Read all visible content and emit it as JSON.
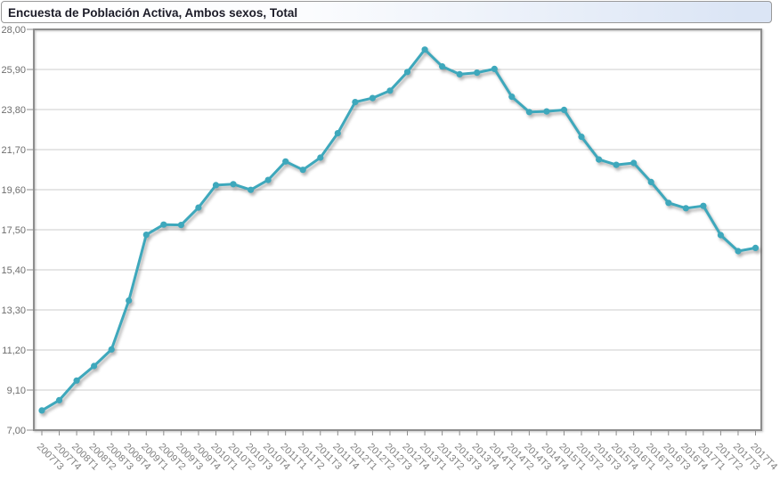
{
  "header": {
    "title": "Encuesta de Población Activa, Ambos sexos, Total"
  },
  "colors": {
    "line": "#3EA8BC",
    "grid": "#cccccc",
    "plot_border": "#8d8d8d",
    "tick": "#8d8d8d",
    "y_label": "#6e6e6e",
    "x_label": "#808080",
    "title_text": "#1c1c28",
    "titlebar_border": "#999999",
    "titlebar_bg_right": "#dbe5f5",
    "background": "#ffffff"
  },
  "chart_data": {
    "type": "line",
    "title": "Encuesta de Población Activa, Ambos sexos, Total",
    "legend": "none",
    "grid": "horizontal",
    "ylim": [
      7.0,
      28.0
    ],
    "ytick_step": 2.1,
    "ytick_labels": [
      "28,00",
      "25,90",
      "23,80",
      "21,70",
      "19,60",
      "17,50",
      "15,40",
      "13,30",
      "11,20",
      "9,10",
      "7,00"
    ],
    "categories": [
      "2007T3",
      "2007T4",
      "2008T1",
      "2008T2",
      "2008T3",
      "2008T4",
      "2009T1",
      "2009T2",
      "2009T3",
      "2009T4",
      "2010T1",
      "2010T2",
      "2010T3",
      "2010T4",
      "2011T1",
      "2011T2",
      "2011T3",
      "2011T4",
      "2012T1",
      "2012T2",
      "2012T3",
      "2012T4",
      "2013T1",
      "2013T2",
      "2013T3",
      "2013T4",
      "2014T1",
      "2014T2",
      "2014T3",
      "2014T4",
      "2015T1",
      "2015T2",
      "2015T3",
      "2015T4",
      "2016T1",
      "2016T2",
      "2016T3",
      "2016T4",
      "2017T1",
      "2017T2",
      "2017T3",
      "2017T4"
    ],
    "values": [
      8.03,
      8.57,
      9.6,
      10.36,
      11.23,
      13.79,
      17.24,
      17.77,
      17.75,
      18.66,
      19.84,
      19.89,
      19.59,
      20.11,
      21.08,
      20.64,
      21.28,
      22.56,
      24.19,
      24.4,
      24.79,
      25.77,
      26.94,
      26.06,
      25.65,
      25.73,
      25.93,
      24.47,
      23.67,
      23.7,
      23.78,
      22.37,
      21.18,
      20.9,
      21.0,
      20.0,
      18.91,
      18.63,
      18.75,
      17.22,
      16.38,
      16.55
    ]
  }
}
